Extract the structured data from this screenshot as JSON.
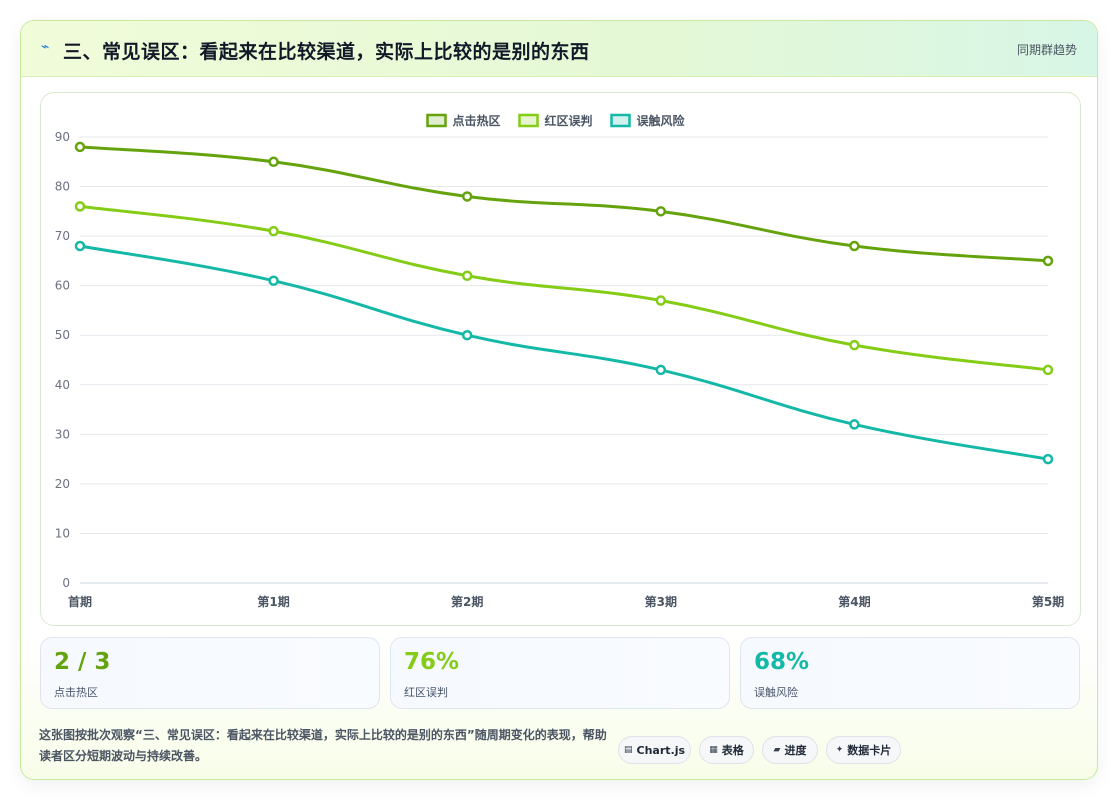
{
  "header": {
    "icon": "lightning-icon",
    "title": "三、常见误区：看起来在比较渠道，实际上比较的是别的东西",
    "trend_label": "同期群趋势"
  },
  "chart_data": {
    "type": "line",
    "categories": [
      "首期",
      "第1期",
      "第2期",
      "第3期",
      "第4期",
      "第5期"
    ],
    "series": [
      {
        "name": "点击热区",
        "color": "#65a30d",
        "values": [
          88,
          85,
          78,
          75,
          68,
          65
        ]
      },
      {
        "name": "红区误判",
        "color": "#84cc16",
        "values": [
          76,
          71,
          62,
          57,
          48,
          43
        ]
      },
      {
        "name": "误触风险",
        "color": "#14b8a6",
        "values": [
          68,
          61,
          50,
          43,
          32,
          25
        ]
      }
    ],
    "ylim": [
      0,
      90
    ],
    "yticks": [
      0,
      10,
      20,
      30,
      40,
      50,
      60,
      70,
      80,
      90
    ],
    "grid": true,
    "legend": "top-center",
    "title": "",
    "xlabel": "",
    "ylabel": ""
  },
  "stats": [
    {
      "value": "2 / 3",
      "label": "点击热区",
      "color": "#65a30d"
    },
    {
      "value": "76%",
      "label": "红区误判",
      "color": "#84cc16"
    },
    {
      "value": "68%",
      "label": "误触风险",
      "color": "#14b8a6"
    }
  ],
  "description": "这张图按批次观察“三、常见误区：看起来在比较渠道，实际上比较的是别的东西”随周期变化的表现，帮助读者区分短期波动与持续改善。",
  "tags": [
    {
      "icon": "▤",
      "label": "Chart.js"
    },
    {
      "icon": "▦",
      "label": "表格"
    },
    {
      "icon": "▰",
      "label": "进度"
    },
    {
      "icon": "✦",
      "label": "数据卡片"
    }
  ]
}
